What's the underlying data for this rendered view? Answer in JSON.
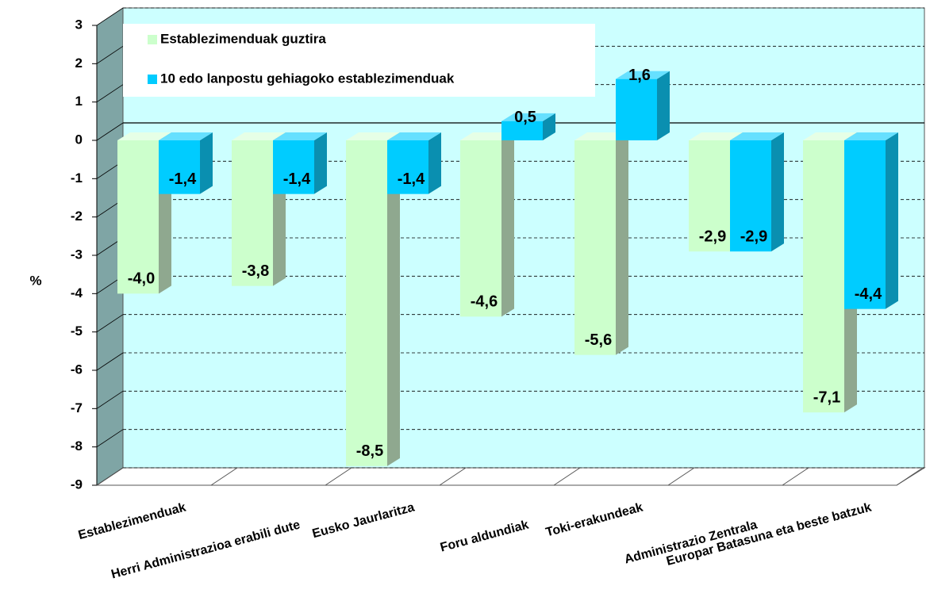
{
  "chart_data": {
    "type": "bar",
    "categories": [
      "Establezimenduak",
      "Herri Administrazioa erabili dute",
      "Eusko Jaurlaritza",
      "Foru aldundiak",
      "Toki-erakundeak",
      "Administrazio Zentrala",
      "Europar Batasuna eta beste batzuk"
    ],
    "series": [
      {
        "name": "Establezimenduak guztira",
        "color": "#ccffcc",
        "values": [
          -4.0,
          -3.8,
          -8.5,
          -4.6,
          -5.6,
          -2.9,
          -7.1
        ],
        "value_labels": [
          "-4,0",
          "-3,8",
          "-8,5",
          "-4,6",
          "-5,6",
          "-2,9",
          "-7,1"
        ]
      },
      {
        "name": "10 edo lanpostu gehiagoko establezimenduak",
        "color": "#00ccff",
        "values": [
          -1.4,
          -1.4,
          -1.4,
          0.5,
          1.6,
          -2.9,
          -4.4
        ],
        "value_labels": [
          "-1,4",
          "-1,4",
          "-1,4",
          "0,5",
          "1,6",
          "-2,9",
          "-4,4"
        ]
      }
    ],
    "y_label": "%",
    "ylim": [
      -9,
      3
    ],
    "yticks": [
      -9,
      -8,
      -7,
      -6,
      -5,
      -4,
      -3,
      -2,
      -1,
      0,
      1,
      2,
      3
    ],
    "grid": true,
    "legend": "top-left"
  }
}
